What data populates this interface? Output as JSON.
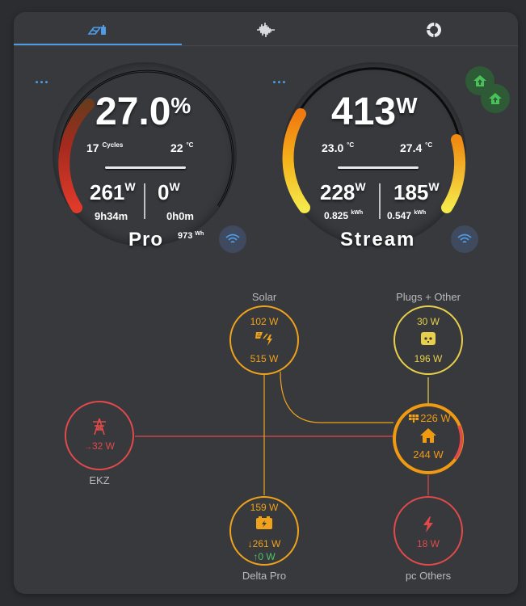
{
  "tabs": [
    {
      "icon": "solar-battery-icon",
      "active": true
    },
    {
      "icon": "waveform-icon",
      "active": false
    },
    {
      "icon": "donut-chart-icon",
      "active": false
    }
  ],
  "pro": {
    "menu": "...",
    "battery_value": "27.0",
    "battery_unit": "%",
    "cycles_value": "17",
    "cycles_label": "Cycles",
    "temp_value": "22",
    "temp_unit": "°C",
    "in_value": "261",
    "in_unit": "W",
    "out_value": "0",
    "out_unit": "W",
    "in_time": "9h34m",
    "out_time": "0h0m",
    "name": "Pro",
    "capacity_value": "973",
    "capacity_unit": "Wh",
    "level": 0.27
  },
  "stream": {
    "menu": "...",
    "power_value": "413",
    "power_unit": "W",
    "temp1_value": "23.0",
    "temp1_unit": "°C",
    "temp2_value": "27.4",
    "temp2_unit": "°C",
    "in_value": "228",
    "in_unit": "W",
    "out_value": "185",
    "out_unit": "W",
    "in_energy": "0.825",
    "in_energy_unit": "kWh",
    "out_energy": "0.547",
    "out_energy_unit": "kWh",
    "name": "Stream"
  },
  "flow": {
    "solar": {
      "label": "Solar",
      "top": "102 W",
      "bottom": "515 W"
    },
    "plugs": {
      "label": "Plugs + Other",
      "top": "30 W",
      "bottom": "196 W"
    },
    "grid": {
      "label": "EKZ",
      "value": "32 W",
      "arrow": "→"
    },
    "home": {
      "top": "226 W",
      "bottom": "244 W"
    },
    "battery": {
      "label": "Delta Pro",
      "top": "159 W",
      "out": "261 W",
      "out_arrow": "↓",
      "in": "0 W",
      "in_arrow": "↑"
    },
    "pc": {
      "label": "pc Others",
      "value": "18 W"
    }
  },
  "colors": {
    "accent_blue": "#4f9ce6",
    "solar_orange": "#f0a21a",
    "grid_red": "#e04a4a",
    "plug_yellow": "#e8cf4a",
    "home_orange": "#f09a12",
    "battery_green": "#4ec46a",
    "card_bg": "#37393d"
  }
}
